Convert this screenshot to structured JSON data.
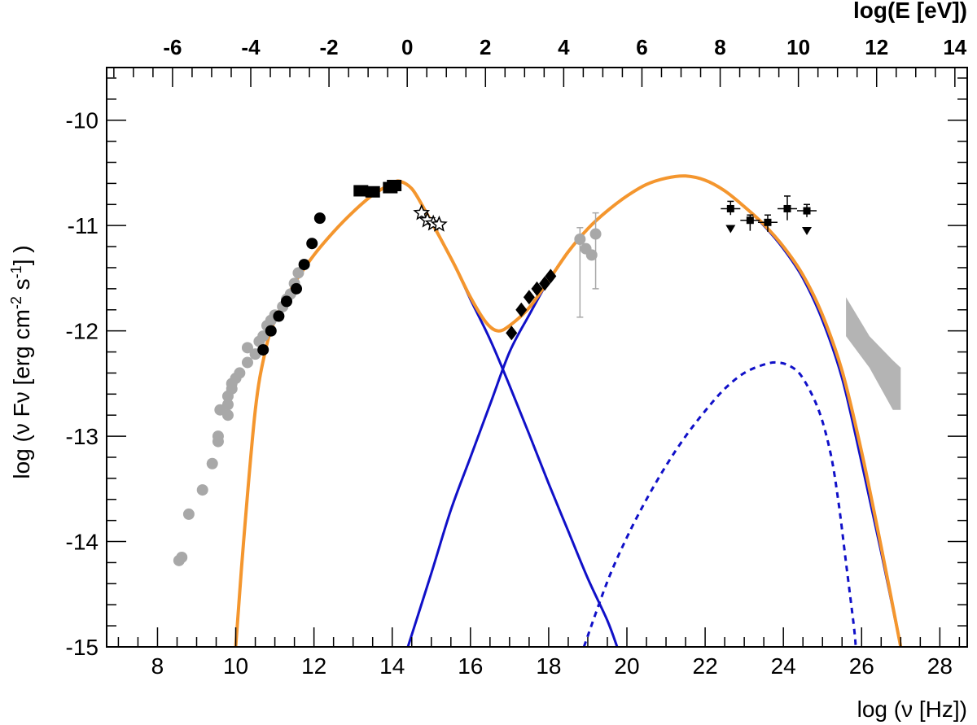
{
  "chart_data": {
    "type": "scatter",
    "xlabel": "log (ν [Hz])",
    "ylabel_main": "log (ν Fν [erg cm",
    "ylabel_exp1": "-2",
    "ylabel_mid": " s",
    "ylabel_exp2": "-1",
    "ylabel_end": "] )",
    "x2label": "log(E [eV])",
    "xlim": [
      6.7,
      28.7
    ],
    "ylim": [
      -15,
      -9.5
    ],
    "x_ticks": [
      "8",
      "10",
      "12",
      "14",
      "16",
      "18",
      "20",
      "22",
      "24",
      "26",
      "28"
    ],
    "x2_ticks": [
      "-6",
      "-4",
      "-2",
      "0",
      "2",
      "4",
      "6",
      "8",
      "10",
      "12",
      "14"
    ],
    "y_ticks": [
      "-10",
      "-11",
      "-12",
      "-13",
      "-14",
      "-15"
    ],
    "colors": {
      "model_component": "#1010c8",
      "total_model": "#f4962e",
      "archival_points": "#a8a8a8",
      "points": "#000000",
      "tev_band": "#b4b4b4"
    },
    "series": [
      {
        "kind": "archival radio-optical (gray circles)",
        "points": [
          [
            8.55,
            -14.18
          ],
          [
            8.62,
            -14.15
          ],
          [
            8.8,
            -13.74
          ],
          [
            9.15,
            -13.51
          ],
          [
            9.4,
            -13.26
          ],
          [
            9.55,
            -13.05
          ],
          [
            9.55,
            -13.0
          ],
          [
            9.6,
            -12.75
          ],
          [
            9.8,
            -12.8
          ],
          [
            9.8,
            -12.7
          ],
          [
            9.8,
            -12.62
          ],
          [
            9.9,
            -12.55
          ],
          [
            9.9,
            -12.5
          ],
          [
            10.0,
            -12.45
          ],
          [
            10.1,
            -12.4
          ],
          [
            10.3,
            -12.3
          ],
          [
            10.3,
            -12.16
          ],
          [
            10.5,
            -12.22
          ],
          [
            10.6,
            -12.1
          ],
          [
            10.7,
            -12.05
          ],
          [
            10.8,
            -11.95
          ],
          [
            10.9,
            -11.9
          ],
          [
            11.0,
            -11.85
          ],
          [
            11.2,
            -11.77
          ],
          [
            11.3,
            -11.7
          ],
          [
            11.4,
            -11.65
          ],
          [
            11.5,
            -11.55
          ],
          [
            11.6,
            -11.45
          ]
        ]
      },
      {
        "kind": "black circles",
        "points": [
          [
            10.7,
            -12.18
          ],
          [
            10.9,
            -12.0
          ],
          [
            11.1,
            -11.86
          ],
          [
            11.3,
            -11.72
          ],
          [
            11.55,
            -11.6
          ],
          [
            11.75,
            -11.37
          ],
          [
            11.95,
            -11.17
          ],
          [
            12.15,
            -10.93
          ]
        ]
      },
      {
        "kind": "optical (black squares)",
        "points": [
          [
            13.2,
            -10.67
          ],
          [
            13.5,
            -10.68
          ],
          [
            13.95,
            -10.64
          ],
          [
            14.05,
            -10.62
          ]
        ]
      },
      {
        "kind": "UV (stars)",
        "points": [
          [
            14.75,
            -10.88
          ],
          [
            14.9,
            -10.95
          ],
          [
            15.05,
            -10.98
          ],
          [
            15.2,
            -10.99
          ]
        ]
      },
      {
        "kind": "X-ray (diamonds)",
        "points": [
          [
            17.05,
            -12.02
          ],
          [
            17.3,
            -11.8
          ],
          [
            17.5,
            -11.68
          ],
          [
            17.7,
            -11.6
          ],
          [
            17.9,
            -11.55
          ],
          [
            18.05,
            -11.48
          ]
        ]
      },
      {
        "kind": "gray circles with error bars",
        "points": [
          [
            18.8,
            -11.13
          ],
          [
            18.95,
            -11.22
          ],
          [
            19.1,
            -11.28
          ],
          [
            19.2,
            -11.08
          ]
        ],
        "errors": [
          [
            18.8,
            -11.02,
            -11.87
          ],
          [
            19.2,
            -10.88,
            -11.6
          ]
        ]
      },
      {
        "kind": "gamma-ray (crosses with error bars)",
        "points": [
          [
            22.65,
            -10.84
          ],
          [
            23.15,
            -10.95
          ],
          [
            23.6,
            -10.97
          ],
          [
            24.1,
            -10.84
          ],
          [
            24.6,
            -10.86
          ]
        ],
        "xerr": 0.25,
        "yerr": [
          [
            -10.77,
            -10.9
          ],
          [
            -10.9,
            -11.05
          ],
          [
            -10.9,
            -11.06
          ],
          [
            -10.72,
            -10.95
          ],
          [
            -10.8,
            -10.92
          ]
        ],
        "upper_limits_at": [
          22.65,
          24.6
        ]
      },
      {
        "kind": "TeV butterfly (gray band)",
        "polygon": [
          [
            25.6,
            -12.05
          ],
          [
            25.6,
            -11.68
          ],
          [
            26.2,
            -12.05
          ],
          [
            26.8,
            -12.28
          ],
          [
            27.0,
            -12.35
          ],
          [
            27.0,
            -12.75
          ],
          [
            26.8,
            -12.75
          ],
          [
            26.2,
            -12.35
          ]
        ]
      }
    ],
    "curves": [
      {
        "style": "solid",
        "color": "model_component",
        "kind": "synchrotron",
        "points": [
          [
            10.0,
            -15.0
          ],
          [
            10.2,
            -14.0
          ],
          [
            10.5,
            -12.75
          ],
          [
            10.75,
            -12.2
          ],
          [
            11.0,
            -11.9
          ],
          [
            11.5,
            -11.55
          ],
          [
            12.0,
            -11.28
          ],
          [
            12.5,
            -11.06
          ],
          [
            13.0,
            -10.87
          ],
          [
            13.5,
            -10.71
          ],
          [
            14.0,
            -10.6
          ],
          [
            14.2,
            -10.58
          ],
          [
            14.5,
            -10.65
          ],
          [
            14.8,
            -10.83
          ],
          [
            15.2,
            -11.1
          ],
          [
            15.6,
            -11.38
          ],
          [
            16.0,
            -11.7
          ],
          [
            16.5,
            -12.08
          ],
          [
            17.0,
            -12.52
          ],
          [
            17.5,
            -12.98
          ],
          [
            18.0,
            -13.45
          ],
          [
            18.5,
            -13.9
          ],
          [
            19.0,
            -14.35
          ],
          [
            19.5,
            -14.75
          ],
          [
            19.75,
            -15.0
          ]
        ]
      },
      {
        "style": "solid",
        "color": "model_component",
        "kind": "SSC",
        "points": [
          [
            14.4,
            -15.0
          ],
          [
            15.0,
            -14.3
          ],
          [
            15.5,
            -13.7
          ],
          [
            16.0,
            -13.2
          ],
          [
            16.5,
            -12.7
          ],
          [
            17.0,
            -12.2
          ],
          [
            17.5,
            -11.85
          ],
          [
            18.0,
            -11.52
          ],
          [
            18.5,
            -11.25
          ],
          [
            19.0,
            -11.03
          ],
          [
            19.5,
            -10.86
          ],
          [
            20.0,
            -10.72
          ],
          [
            20.5,
            -10.61
          ],
          [
            21.0,
            -10.55
          ],
          [
            21.5,
            -10.53
          ],
          [
            22.0,
            -10.57
          ],
          [
            22.5,
            -10.67
          ],
          [
            23.0,
            -10.82
          ],
          [
            23.5,
            -11.0
          ],
          [
            24.0,
            -11.22
          ],
          [
            24.5,
            -11.5
          ],
          [
            25.0,
            -11.9
          ],
          [
            25.5,
            -12.45
          ],
          [
            26.0,
            -13.25
          ],
          [
            26.5,
            -14.1
          ],
          [
            27.0,
            -15.0
          ]
        ]
      },
      {
        "style": "dashed",
        "color": "model_component",
        "kind": "external component",
        "points": [
          [
            18.9,
            -15.0
          ],
          [
            19.5,
            -14.38
          ],
          [
            20.0,
            -13.96
          ],
          [
            20.5,
            -13.6
          ],
          [
            21.0,
            -13.28
          ],
          [
            21.5,
            -13.0
          ],
          [
            22.0,
            -12.76
          ],
          [
            22.5,
            -12.55
          ],
          [
            23.0,
            -12.4
          ],
          [
            23.5,
            -12.32
          ],
          [
            23.85,
            -12.3
          ],
          [
            24.2,
            -12.34
          ],
          [
            24.5,
            -12.45
          ],
          [
            24.9,
            -12.75
          ],
          [
            25.2,
            -13.15
          ],
          [
            25.4,
            -13.6
          ],
          [
            25.6,
            -14.2
          ],
          [
            25.8,
            -14.8
          ],
          [
            25.85,
            -15.0
          ]
        ]
      },
      {
        "style": "solid",
        "color": "total_model",
        "kind": "total",
        "points": [
          [
            10.0,
            -15.0
          ],
          [
            10.2,
            -14.0
          ],
          [
            10.5,
            -12.75
          ],
          [
            10.75,
            -12.2
          ],
          [
            11.0,
            -11.9
          ],
          [
            11.5,
            -11.55
          ],
          [
            12.0,
            -11.28
          ],
          [
            12.5,
            -11.06
          ],
          [
            13.0,
            -10.87
          ],
          [
            13.5,
            -10.71
          ],
          [
            14.0,
            -10.6
          ],
          [
            14.2,
            -10.58
          ],
          [
            14.5,
            -10.65
          ],
          [
            14.8,
            -10.83
          ],
          [
            15.2,
            -11.1
          ],
          [
            15.6,
            -11.38
          ],
          [
            16.0,
            -11.68
          ],
          [
            16.4,
            -11.92
          ],
          [
            16.7,
            -12.0
          ],
          [
            17.0,
            -11.95
          ],
          [
            17.5,
            -11.78
          ],
          [
            18.0,
            -11.52
          ],
          [
            18.5,
            -11.25
          ],
          [
            19.0,
            -11.03
          ],
          [
            19.5,
            -10.86
          ],
          [
            20.0,
            -10.72
          ],
          [
            20.5,
            -10.61
          ],
          [
            21.0,
            -10.55
          ],
          [
            21.5,
            -10.53
          ],
          [
            22.0,
            -10.57
          ],
          [
            22.5,
            -10.67
          ],
          [
            23.0,
            -10.82
          ],
          [
            23.5,
            -10.99
          ],
          [
            24.0,
            -11.2
          ],
          [
            24.5,
            -11.47
          ],
          [
            25.0,
            -11.85
          ],
          [
            25.5,
            -12.38
          ],
          [
            26.0,
            -13.15
          ],
          [
            26.5,
            -14.05
          ],
          [
            27.0,
            -15.0
          ]
        ]
      }
    ]
  }
}
